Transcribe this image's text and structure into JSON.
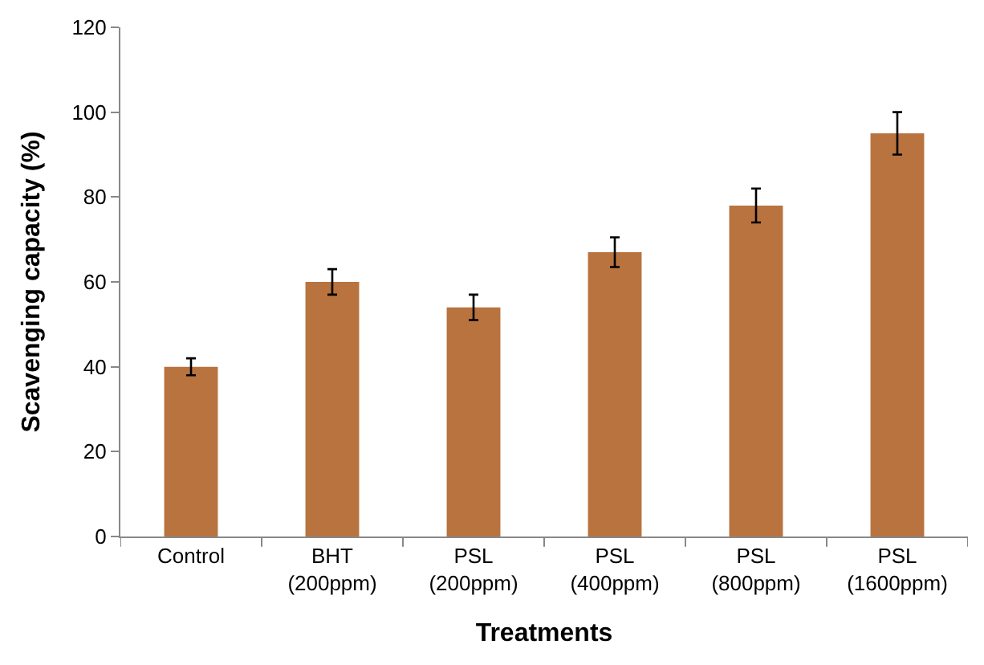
{
  "chart_data": {
    "type": "bar",
    "xlabel": "Treatments",
    "ylabel": "Scavenging capacity (%)",
    "categories": [
      "Control",
      "BHT\n(200ppm)",
      "PSL\n(200ppm)",
      "PSL\n(400ppm)",
      "PSL\n(800ppm)",
      "PSL\n(1600ppm)"
    ],
    "values": [
      40,
      60,
      54,
      67,
      78,
      95
    ],
    "errors": [
      2,
      3,
      3,
      3.5,
      4,
      5
    ],
    "color": "#b8733f",
    "ylim": [
      0,
      120
    ],
    "yticks": [
      0,
      20,
      40,
      60,
      80,
      100,
      120
    ]
  }
}
